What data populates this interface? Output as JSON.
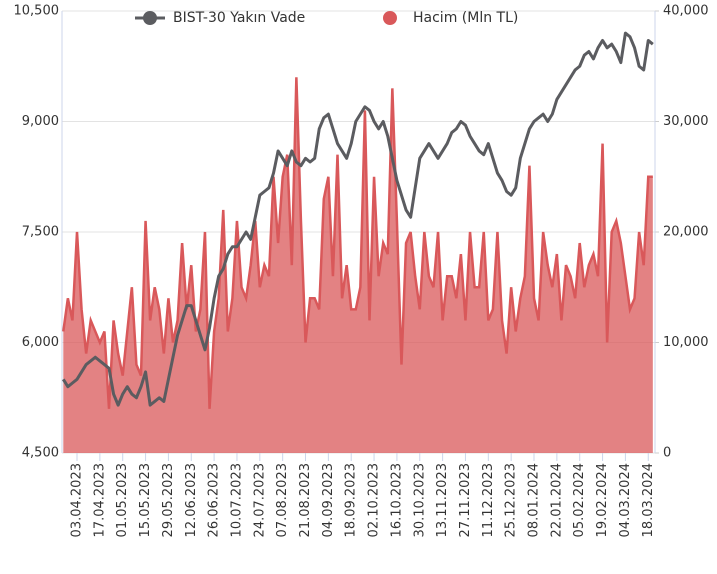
{
  "chart_data": {
    "type": "line-area-dual",
    "legend": "top",
    "grid": true,
    "categories": [
      null,
      null,
      null,
      "03.04.2023",
      null,
      null,
      null,
      null,
      "17.04.2023",
      null,
      null,
      null,
      null,
      "01.05.2023",
      null,
      null,
      null,
      null,
      "15.05.2023",
      null,
      null,
      null,
      null,
      "29.05.2023",
      null,
      null,
      null,
      null,
      "12.06.2023",
      null,
      null,
      null,
      null,
      "26.06.2023",
      null,
      null,
      null,
      null,
      "10.07.2023",
      null,
      null,
      null,
      null,
      "24.07.2023",
      null,
      null,
      null,
      null,
      "07.08.2023",
      null,
      null,
      null,
      null,
      "21.08.2023",
      null,
      null,
      null,
      null,
      "04.09.2023",
      null,
      null,
      null,
      null,
      "18.09.2023",
      null,
      null,
      null,
      null,
      "02.10.2023",
      null,
      null,
      null,
      null,
      "16.10.2023",
      null,
      null,
      null,
      null,
      "30.10.2023",
      null,
      null,
      null,
      null,
      "13.11.2023",
      null,
      null,
      null,
      null,
      "27.11.2023",
      null,
      null,
      null,
      null,
      "11.12.2023",
      null,
      null,
      null,
      null,
      "25.12.2023",
      null,
      null,
      null,
      null,
      "08.01.2024",
      null,
      null,
      null,
      null,
      "22.01.2024",
      null,
      null,
      null,
      null,
      "05.02.2024",
      null,
      null,
      null,
      null,
      "19.02.2024",
      null,
      null,
      null,
      null,
      "04.03.2024",
      null,
      null,
      null,
      null,
      "18.03.2024",
      null
    ],
    "series": [
      {
        "name": "BIST-30 Yakın Vade",
        "color": "#5b5c60",
        "kind": "line",
        "axis": "y",
        "values": [
          5500,
          5400,
          5450,
          5500,
          5600,
          5700,
          5750,
          5800,
          5750,
          5700,
          5650,
          5300,
          5150,
          5300,
          5400,
          5300,
          5250,
          5400,
          5600,
          5150,
          5200,
          5250,
          5200,
          5500,
          5800,
          6100,
          6300,
          6500,
          6500,
          6300,
          6100,
          5900,
          6200,
          6600,
          6900,
          7000,
          7200,
          7300,
          7300,
          7400,
          7500,
          7400,
          7700,
          8000,
          8050,
          8100,
          8300,
          8600,
          8500,
          8400,
          8600,
          8450,
          8400,
          8500,
          8450,
          8500,
          8900,
          9050,
          9100,
          8900,
          8700,
          8600,
          8500,
          8700,
          9000,
          9100,
          9200,
          9150,
          9000,
          8900,
          9000,
          8800,
          8500,
          8200,
          8000,
          7800,
          7700,
          8100,
          8500,
          8600,
          8700,
          8600,
          8500,
          8600,
          8700,
          8850,
          8900,
          9000,
          8950,
          8800,
          8700,
          8600,
          8550,
          8700,
          8500,
          8300,
          8200,
          8050,
          8000,
          8100,
          8500,
          8700,
          8900,
          9000,
          9050,
          9100,
          9000,
          9100,
          9300,
          9400,
          9500,
          9600,
          9700,
          9750,
          9900,
          9950,
          9850,
          10000,
          10100,
          10000,
          10050,
          9950,
          9800,
          10200,
          10150,
          10000,
          9750,
          9700,
          10100,
          10050
        ]
      },
      {
        "name": "Hacim (Mln TL)",
        "color": "#d9585a",
        "kind": "area",
        "axis": "y2",
        "values": [
          11000,
          14000,
          12000,
          20000,
          13000,
          9000,
          12000,
          11000,
          10000,
          11000,
          4000,
          12000,
          9000,
          7000,
          11000,
          15000,
          8000,
          7000,
          21000,
          12000,
          15000,
          13000,
          9000,
          14000,
          10000,
          12000,
          19000,
          13000,
          17000,
          11000,
          13000,
          20000,
          4000,
          11000,
          14000,
          22000,
          11000,
          14000,
          21000,
          15000,
          14000,
          17000,
          21000,
          15000,
          17000,
          16000,
          25000,
          19000,
          25000,
          27000,
          17000,
          34000,
          21000,
          10000,
          14000,
          14000,
          13000,
          23000,
          25000,
          16000,
          27000,
          14000,
          17000,
          13000,
          13000,
          15000,
          31000,
          12000,
          25000,
          16000,
          19000,
          18000,
          33000,
          21000,
          8000,
          19000,
          20000,
          16000,
          13000,
          20000,
          16000,
          15000,
          20000,
          12000,
          16000,
          16000,
          14000,
          18000,
          12000,
          20000,
          15000,
          15000,
          20000,
          12000,
          13000,
          20000,
          12000,
          9000,
          15000,
          11000,
          14000,
          16000,
          26000,
          14000,
          12000,
          20000,
          17000,
          15000,
          18000,
          12000,
          17000,
          16000,
          14000,
          19000,
          15000,
          17000,
          18000,
          16000,
          28000,
          10000,
          20000,
          21000,
          19000,
          16000,
          13000,
          14000,
          20000,
          17000,
          25000,
          25000
        ]
      }
    ],
    "ylim": [
      4500,
      10500
    ],
    "yticks": [
      {
        "value": 4500,
        "label": "4,500"
      },
      {
        "value": 6000,
        "label": "6,000"
      },
      {
        "value": 7500,
        "label": "7,500"
      },
      {
        "value": 9000,
        "label": "9,000"
      },
      {
        "value": 10500,
        "label": "10,500"
      }
    ],
    "y2lim": [
      0,
      40000
    ],
    "y2ticks": [
      0,
      {
        "value": 10000,
        "label": "10,000"
      },
      {
        "value": 20000,
        "label": "20,000"
      },
      {
        "value": 30000,
        "label": "30,000"
      },
      {
        "value": 40000,
        "label": "40,000"
      }
    ]
  }
}
